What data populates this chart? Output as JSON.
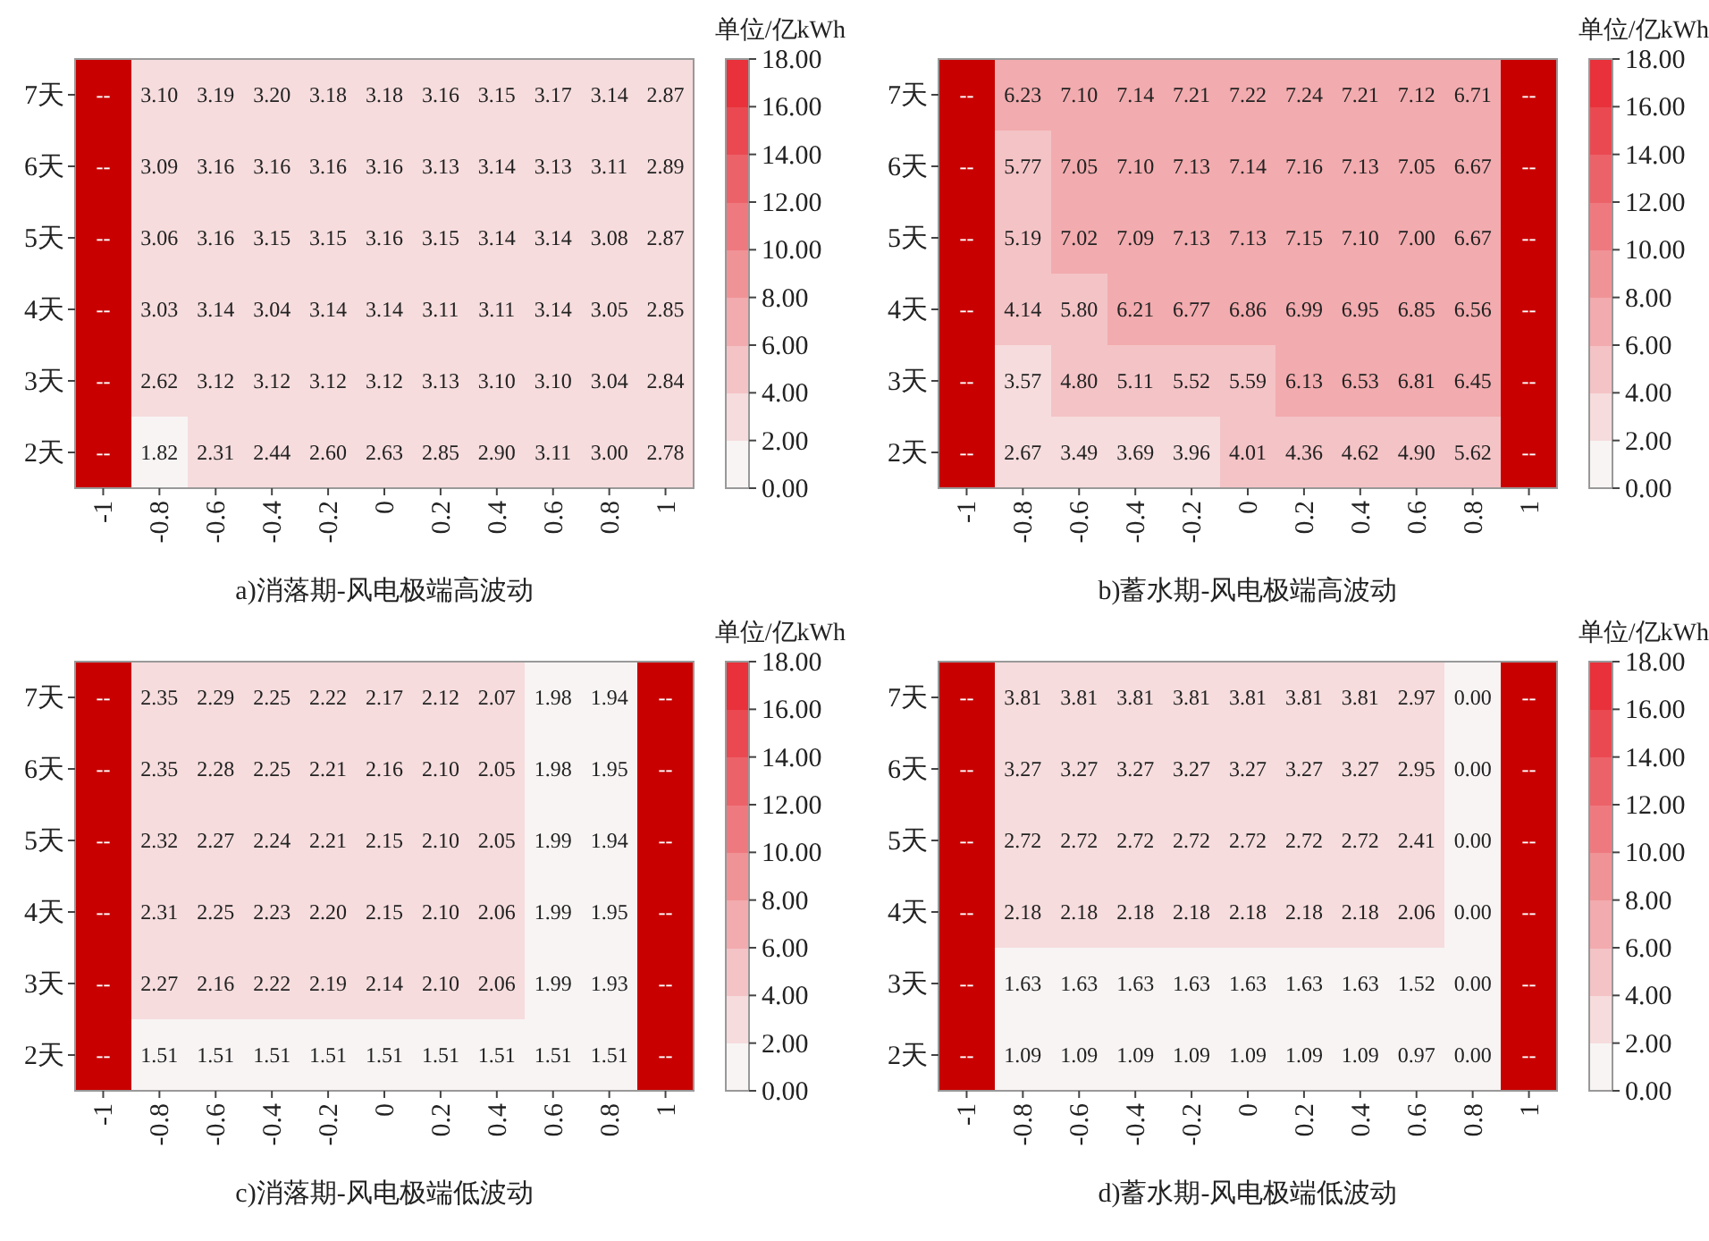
{
  "chart_data": [
    {
      "type": "heatmap",
      "title": "a)消落期-风电极端高波动",
      "clabel": "单位/亿kWh",
      "categories": [
        "-1",
        "-0.8",
        "-0.6",
        "-0.4",
        "-0.2",
        "0",
        "0.2",
        "0.4",
        "0.6",
        "0.8",
        "1"
      ],
      "y_categories": [
        "7天",
        "6天",
        "5天",
        "4天",
        "3天",
        "2天"
      ],
      "cells": [
        [
          null,
          3.1,
          3.19,
          3.2,
          3.18,
          3.18,
          3.16,
          3.15,
          3.17,
          3.14,
          2.87
        ],
        [
          null,
          3.09,
          3.16,
          3.16,
          3.16,
          3.16,
          3.13,
          3.14,
          3.13,
          3.11,
          2.89
        ],
        [
          null,
          3.06,
          3.16,
          3.15,
          3.15,
          3.16,
          3.15,
          3.14,
          3.14,
          3.08,
          2.87
        ],
        [
          null,
          3.03,
          3.14,
          3.04,
          3.14,
          3.14,
          3.11,
          3.11,
          3.14,
          3.05,
          2.85
        ],
        [
          null,
          2.62,
          3.12,
          3.12,
          3.12,
          3.12,
          3.13,
          3.1,
          3.1,
          3.04,
          2.84
        ],
        [
          null,
          1.82,
          2.31,
          2.44,
          2.6,
          2.63,
          2.85,
          2.9,
          3.11,
          3.0,
          2.78
        ]
      ],
      "cell_labels": [
        [
          "--",
          "3.10",
          "3.19",
          "3.20",
          "3.18",
          "3.18",
          "3.16",
          "3.15",
          "3.17",
          "3.14",
          "2.87"
        ],
        [
          "--",
          "3.09",
          "3.16",
          "3.16",
          "3.16",
          "3.16",
          "3.13",
          "3.14",
          "3.13",
          "3.11",
          "2.89"
        ],
        [
          "--",
          "3.06",
          "3.16",
          "3.15",
          "3.15",
          "3.16",
          "3.15",
          "3.14",
          "3.14",
          "3.08",
          "2.87"
        ],
        [
          "--",
          "3.03",
          "3.14",
          "3.04",
          "3.14",
          "3.14",
          "3.11",
          "3.11",
          "3.14",
          "3.05",
          "2.85"
        ],
        [
          "--",
          "2.62",
          "3.12",
          "3.12",
          "3.12",
          "3.12",
          "3.13",
          "3.10",
          "3.10",
          "3.04",
          "2.84"
        ],
        [
          "--",
          "1.82",
          "2.31",
          "2.44",
          "2.60",
          "2.63",
          "2.85",
          "2.90",
          "3.11",
          "3.00",
          "2.78"
        ]
      ],
      "clim": [
        0,
        18
      ],
      "cticks": [
        {
          "value": 0,
          "label": "0.00"
        },
        {
          "value": 2,
          "label": "2.00"
        },
        {
          "value": 4,
          "label": "4.00"
        },
        {
          "value": 6,
          "label": "6.00"
        },
        {
          "value": 8,
          "label": "8.00"
        },
        {
          "value": 10,
          "label": "10.00"
        },
        {
          "value": 12,
          "label": "12.00"
        },
        {
          "value": 14,
          "label": "14.00"
        },
        {
          "value": 16,
          "label": "16.00"
        },
        {
          "value": 18,
          "label": "18.00"
        }
      ]
    },
    {
      "type": "heatmap",
      "title": "b)蓄水期-风电极端高波动",
      "clabel": "单位/亿kWh",
      "categories": [
        "-1",
        "-0.8",
        "-0.6",
        "-0.4",
        "-0.2",
        "0",
        "0.2",
        "0.4",
        "0.6",
        "0.8",
        "1"
      ],
      "y_categories": [
        "7天",
        "6天",
        "5天",
        "4天",
        "3天",
        "2天"
      ],
      "cells": [
        [
          null,
          6.23,
          7.1,
          7.14,
          7.21,
          7.22,
          7.24,
          7.21,
          7.12,
          6.71,
          null
        ],
        [
          null,
          5.77,
          7.05,
          7.1,
          7.13,
          7.14,
          7.16,
          7.13,
          7.05,
          6.67,
          null
        ],
        [
          null,
          5.19,
          7.02,
          7.09,
          7.13,
          7.13,
          7.15,
          7.1,
          7.0,
          6.67,
          null
        ],
        [
          null,
          4.14,
          5.8,
          6.21,
          6.77,
          6.86,
          6.99,
          6.95,
          6.85,
          6.56,
          null
        ],
        [
          null,
          3.57,
          4.8,
          5.11,
          5.52,
          5.59,
          6.13,
          6.53,
          6.81,
          6.45,
          null
        ],
        [
          null,
          2.67,
          3.49,
          3.69,
          3.96,
          4.01,
          4.36,
          4.62,
          4.9,
          5.62,
          null
        ]
      ],
      "cell_labels": [
        [
          "--",
          "6.23",
          "7.10",
          "7.14",
          "7.21",
          "7.22",
          "7.24",
          "7.21",
          "7.12",
          "6.71",
          "--"
        ],
        [
          "--",
          "5.77",
          "7.05",
          "7.10",
          "7.13",
          "7.14",
          "7.16",
          "7.13",
          "7.05",
          "6.67",
          "--"
        ],
        [
          "--",
          "5.19",
          "7.02",
          "7.09",
          "7.13",
          "7.13",
          "7.15",
          "7.10",
          "7.00",
          "6.67",
          "--"
        ],
        [
          "--",
          "4.14",
          "5.80",
          "6.21",
          "6.77",
          "6.86",
          "6.99",
          "6.95",
          "6.85",
          "6.56",
          "--"
        ],
        [
          "--",
          "3.57",
          "4.80",
          "5.11",
          "5.52",
          "5.59",
          "6.13",
          "6.53",
          "6.81",
          "6.45",
          "--"
        ],
        [
          "--",
          "2.67",
          "3.49",
          "3.69",
          "3.96",
          "4.01",
          "4.36",
          "4.62",
          "4.90",
          "5.62",
          "--"
        ]
      ],
      "clim": [
        0,
        18
      ],
      "cticks": [
        {
          "value": 0,
          "label": "0.00"
        },
        {
          "value": 2,
          "label": "2.00"
        },
        {
          "value": 4,
          "label": "4.00"
        },
        {
          "value": 6,
          "label": "6.00"
        },
        {
          "value": 8,
          "label": "8.00"
        },
        {
          "value": 10,
          "label": "10.00"
        },
        {
          "value": 12,
          "label": "12.00"
        },
        {
          "value": 14,
          "label": "14.00"
        },
        {
          "value": 16,
          "label": "16.00"
        },
        {
          "value": 18,
          "label": "18.00"
        }
      ]
    },
    {
      "type": "heatmap",
      "title": "c)消落期-风电极端低波动",
      "clabel": "单位/亿kWh",
      "categories": [
        "-1",
        "-0.8",
        "-0.6",
        "-0.4",
        "-0.2",
        "0",
        "0.2",
        "0.4",
        "0.6",
        "0.8",
        "1"
      ],
      "y_categories": [
        "7天",
        "6天",
        "5天",
        "4天",
        "3天",
        "2天"
      ],
      "cells": [
        [
          null,
          2.35,
          2.29,
          2.25,
          2.22,
          2.17,
          2.12,
          2.07,
          1.98,
          1.94,
          null
        ],
        [
          null,
          2.35,
          2.28,
          2.25,
          2.21,
          2.16,
          2.1,
          2.05,
          1.98,
          1.95,
          null
        ],
        [
          null,
          2.32,
          2.27,
          2.24,
          2.21,
          2.15,
          2.1,
          2.05,
          1.99,
          1.94,
          null
        ],
        [
          null,
          2.31,
          2.25,
          2.23,
          2.2,
          2.15,
          2.1,
          2.06,
          1.99,
          1.95,
          null
        ],
        [
          null,
          2.27,
          2.16,
          2.22,
          2.19,
          2.14,
          2.1,
          2.06,
          1.99,
          1.93,
          null
        ],
        [
          null,
          1.51,
          1.51,
          1.51,
          1.51,
          1.51,
          1.51,
          1.51,
          1.51,
          1.51,
          null
        ]
      ],
      "cell_labels": [
        [
          "--",
          "2.35",
          "2.29",
          "2.25",
          "2.22",
          "2.17",
          "2.12",
          "2.07",
          "1.98",
          "1.94",
          "--"
        ],
        [
          "--",
          "2.35",
          "2.28",
          "2.25",
          "2.21",
          "2.16",
          "2.10",
          "2.05",
          "1.98",
          "1.95",
          "--"
        ],
        [
          "--",
          "2.32",
          "2.27",
          "2.24",
          "2.21",
          "2.15",
          "2.10",
          "2.05",
          "1.99",
          "1.94",
          "--"
        ],
        [
          "--",
          "2.31",
          "2.25",
          "2.23",
          "2.20",
          "2.15",
          "2.10",
          "2.06",
          "1.99",
          "1.95",
          "--"
        ],
        [
          "--",
          "2.27",
          "2.16",
          "2.22",
          "2.19",
          "2.14",
          "2.10",
          "2.06",
          "1.99",
          "1.93",
          "--"
        ],
        [
          "--",
          "1.51",
          "1.51",
          "1.51",
          "1.51",
          "1.51",
          "1.51",
          "1.51",
          "1.51",
          "1.51",
          "--"
        ]
      ],
      "clim": [
        0,
        18
      ],
      "cticks": [
        {
          "value": 0,
          "label": "0.00"
        },
        {
          "value": 2,
          "label": "2.00"
        },
        {
          "value": 4,
          "label": "4.00"
        },
        {
          "value": 6,
          "label": "6.00"
        },
        {
          "value": 8,
          "label": "8.00"
        },
        {
          "value": 10,
          "label": "10.00"
        },
        {
          "value": 12,
          "label": "12.00"
        },
        {
          "value": 14,
          "label": "14.00"
        },
        {
          "value": 16,
          "label": "16.00"
        },
        {
          "value": 18,
          "label": "18.00"
        }
      ]
    },
    {
      "type": "heatmap",
      "title": "d)蓄水期-风电极端低波动",
      "clabel": "单位/亿kWh",
      "categories": [
        "-1",
        "-0.8",
        "-0.6",
        "-0.4",
        "-0.2",
        "0",
        "0.2",
        "0.4",
        "0.6",
        "0.8",
        "1"
      ],
      "y_categories": [
        "7天",
        "6天",
        "5天",
        "4天",
        "3天",
        "2天"
      ],
      "cells": [
        [
          null,
          3.81,
          3.81,
          3.81,
          3.81,
          3.81,
          3.81,
          3.81,
          2.97,
          0.0,
          null
        ],
        [
          null,
          3.27,
          3.27,
          3.27,
          3.27,
          3.27,
          3.27,
          3.27,
          2.95,
          0.0,
          null
        ],
        [
          null,
          2.72,
          2.72,
          2.72,
          2.72,
          2.72,
          2.72,
          2.72,
          2.41,
          0.0,
          null
        ],
        [
          null,
          2.18,
          2.18,
          2.18,
          2.18,
          2.18,
          2.18,
          2.18,
          2.06,
          0.0,
          null
        ],
        [
          null,
          1.63,
          1.63,
          1.63,
          1.63,
          1.63,
          1.63,
          1.63,
          1.52,
          0.0,
          null
        ],
        [
          null,
          1.09,
          1.09,
          1.09,
          1.09,
          1.09,
          1.09,
          1.09,
          0.97,
          0.0,
          null
        ]
      ],
      "cell_labels": [
        [
          "--",
          "3.81",
          "3.81",
          "3.81",
          "3.81",
          "3.81",
          "3.81",
          "3.81",
          "2.97",
          "0.00",
          "--"
        ],
        [
          "--",
          "3.27",
          "3.27",
          "3.27",
          "3.27",
          "3.27",
          "3.27",
          "3.27",
          "2.95",
          "0.00",
          "--"
        ],
        [
          "--",
          "2.72",
          "2.72",
          "2.72",
          "2.72",
          "2.72",
          "2.72",
          "2.72",
          "2.41",
          "0.00",
          "--"
        ],
        [
          "--",
          "2.18",
          "2.18",
          "2.18",
          "2.18",
          "2.18",
          "2.18",
          "2.18",
          "2.06",
          "0.00",
          "--"
        ],
        [
          "--",
          "1.63",
          "1.63",
          "1.63",
          "1.63",
          "1.63",
          "1.63",
          "1.63",
          "1.52",
          "0.00",
          "--"
        ],
        [
          "--",
          "1.09",
          "1.09",
          "1.09",
          "1.09",
          "1.09",
          "1.09",
          "1.09",
          "0.97",
          "0.00",
          "--"
        ]
      ],
      "clim": [
        0,
        18
      ],
      "cticks": [
        {
          "value": 0,
          "label": "0.00"
        },
        {
          "value": 2,
          "label": "2.00"
        },
        {
          "value": 4,
          "label": "4.00"
        },
        {
          "value": 6,
          "label": "6.00"
        },
        {
          "value": 8,
          "label": "8.00"
        },
        {
          "value": 10,
          "label": "10.00"
        },
        {
          "value": 12,
          "label": "12.00"
        },
        {
          "value": 14,
          "label": "14.00"
        },
        {
          "value": 16,
          "label": "16.00"
        },
        {
          "value": 18,
          "label": "18.00"
        }
      ]
    }
  ]
}
